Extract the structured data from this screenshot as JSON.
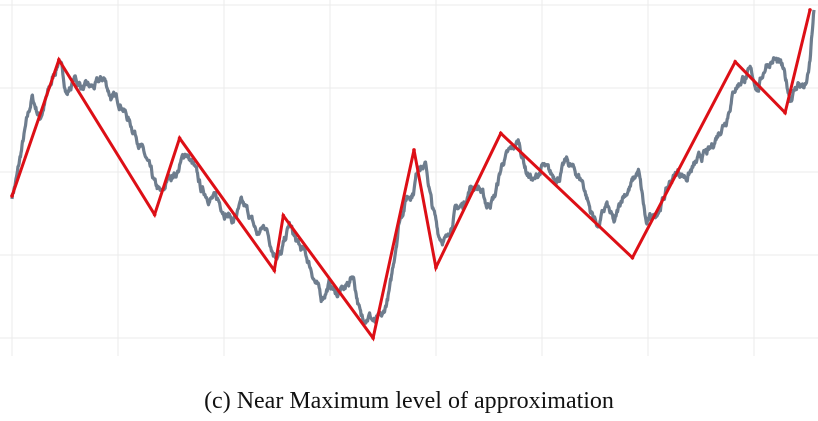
{
  "caption": "(c) Near Maximum level of approximation",
  "chart_data": {
    "type": "line",
    "title": "",
    "xlabel": "",
    "ylabel": "",
    "grid": true,
    "xlim": [
      0,
      800
    ],
    "ylim": [
      0,
      340
    ],
    "series": [
      {
        "role": "raw",
        "color": "#6e7d8e",
        "anchors": [
          [
            0,
            145
          ],
          [
            5,
            165
          ],
          [
            12,
            205
          ],
          [
            20,
            245
          ],
          [
            28,
            225
          ],
          [
            38,
            255
          ],
          [
            47,
            285
          ],
          [
            55,
            250
          ],
          [
            63,
            265
          ],
          [
            72,
            255
          ],
          [
            82,
            255
          ],
          [
            92,
            265
          ],
          [
            100,
            245
          ],
          [
            110,
            240
          ],
          [
            118,
            220
          ],
          [
            126,
            205
          ],
          [
            135,
            180
          ],
          [
            143,
            155
          ],
          [
            150,
            145
          ],
          [
            158,
            165
          ],
          [
            166,
            170
          ],
          [
            174,
            190
          ],
          [
            182,
            175
          ],
          [
            190,
            150
          ],
          [
            198,
            145
          ],
          [
            206,
            140
          ],
          [
            214,
            130
          ],
          [
            222,
            120
          ],
          [
            230,
            135
          ],
          [
            238,
            125
          ],
          [
            246,
            105
          ],
          [
            254,
            115
          ],
          [
            262,
            90
          ],
          [
            270,
            85
          ],
          [
            278,
            115
          ],
          [
            286,
            95
          ],
          [
            294,
            85
          ],
          [
            302,
            65
          ],
          [
            310,
            40
          ],
          [
            318,
            55
          ],
          [
            326,
            45
          ],
          [
            334,
            50
          ],
          [
            342,
            65
          ],
          [
            350,
            20
          ],
          [
            358,
            25
          ],
          [
            364,
            15
          ],
          [
            372,
            20
          ],
          [
            380,
            55
          ],
          [
            388,
            120
          ],
          [
            396,
            145
          ],
          [
            402,
            150
          ],
          [
            408,
            180
          ],
          [
            415,
            175
          ],
          [
            421,
            135
          ],
          [
            428,
            105
          ],
          [
            436,
            100
          ],
          [
            444,
            130
          ],
          [
            452,
            135
          ],
          [
            460,
            155
          ],
          [
            468,
            155
          ],
          [
            476,
            135
          ],
          [
            484,
            145
          ],
          [
            492,
            180
          ],
          [
            500,
            190
          ],
          [
            508,
            200
          ],
          [
            516,
            170
          ],
          [
            524,
            160
          ],
          [
            532,
            175
          ],
          [
            540,
            165
          ],
          [
            548,
            165
          ],
          [
            556,
            180
          ],
          [
            564,
            170
          ],
          [
            572,
            160
          ],
          [
            580,
            130
          ],
          [
            588,
            115
          ],
          [
            596,
            135
          ],
          [
            604,
            115
          ],
          [
            612,
            145
          ],
          [
            620,
            155
          ],
          [
            628,
            170
          ],
          [
            636,
            115
          ],
          [
            644,
            125
          ],
          [
            652,
            140
          ],
          [
            660,
            160
          ],
          [
            668,
            170
          ],
          [
            676,
            165
          ],
          [
            684,
            175
          ],
          [
            692,
            185
          ],
          [
            700,
            190
          ],
          [
            708,
            210
          ],
          [
            716,
            225
          ],
          [
            724,
            255
          ],
          [
            732,
            265
          ],
          [
            740,
            270
          ],
          [
            748,
            255
          ],
          [
            756,
            280
          ],
          [
            764,
            285
          ],
          [
            772,
            275
          ],
          [
            780,
            245
          ],
          [
            788,
            260
          ],
          [
            796,
            255
          ],
          [
            800,
            280
          ],
          [
            804,
            335
          ]
        ],
        "noise_amp": 6,
        "noise_seed": 7
      },
      {
        "role": "approximation",
        "color": "#dd0f16",
        "x": [
          0,
          47,
          143,
          168,
          263,
          272,
          362,
          403,
          425,
          490,
          622,
          725,
          775,
          800
        ],
        "y": [
          145,
          284,
          126,
          204,
          69,
          125,
          0,
          192,
          72,
          209,
          82,
          282,
          230,
          335
        ]
      }
    ]
  }
}
